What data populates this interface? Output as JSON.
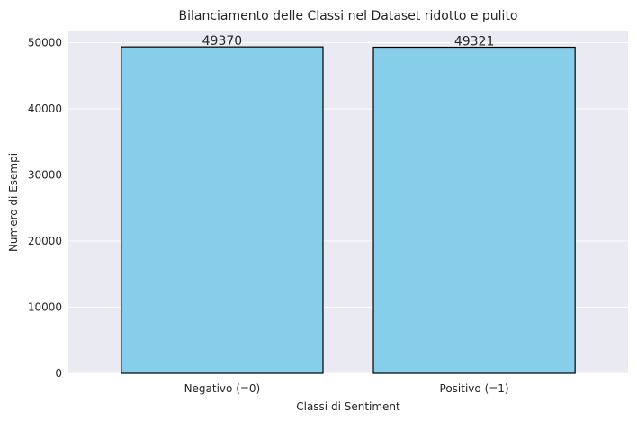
{
  "chart_data": {
    "type": "bar",
    "title": "Bilanciamento delle Classi nel Dataset ridotto e pulito",
    "xlabel": "Classi di Sentiment",
    "ylabel": "Numero di Esempi",
    "categories": [
      "Negativo (=0)",
      "Positivo (=1)"
    ],
    "values": [
      49370,
      49321
    ],
    "data_labels": [
      "49370",
      "49321"
    ],
    "ylim": [
      0,
      51839
    ],
    "yticks": [
      0,
      10000,
      20000,
      30000,
      40000,
      50000
    ],
    "ytick_labels": [
      "0",
      "10000",
      "20000",
      "30000",
      "40000",
      "50000"
    ],
    "grid": true,
    "bar_color": "#87ceeb",
    "bar_edge_color": "#000000",
    "plot_background": "#eaeaf2",
    "grid_color": "#ffffff"
  }
}
